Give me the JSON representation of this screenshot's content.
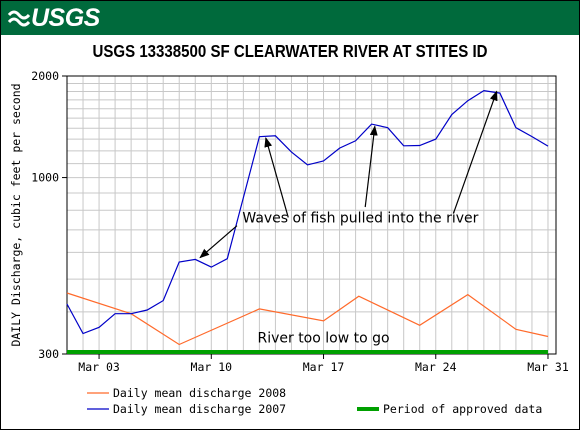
{
  "header": {
    "logo_text": "USGS",
    "title": "USGS 13338500 SF CLEARWATER RIVER AT STITES ID"
  },
  "chart_data": {
    "type": "line",
    "title": "USGS 13338500 SF CLEARWATER RIVER AT STITES ID",
    "ylabel": "DAILY Discharge, cubic feet per second",
    "xlabel": "",
    "y_scale": "log",
    "ylim": [
      300,
      2000
    ],
    "xlim": [
      1,
      31.5
    ],
    "grid": true,
    "x_ticks": [
      {
        "x": 3,
        "label": "Mar 03"
      },
      {
        "x": 10,
        "label": "Mar 10"
      },
      {
        "x": 17,
        "label": "Mar 17"
      },
      {
        "x": 24,
        "label": "Mar 24"
      },
      {
        "x": 31,
        "label": "Mar 31"
      }
    ],
    "y_ticks": [
      {
        "y": 300,
        "label": "300"
      },
      {
        "y": 1000,
        "label": "1000"
      },
      {
        "y": 2000,
        "label": "2000"
      }
    ],
    "series": [
      {
        "name": "Daily mean discharge 2008",
        "color": "#ff6a2b",
        "points": [
          [
            1,
            455
          ],
          [
            5,
            395
          ],
          [
            8,
            320
          ],
          [
            13,
            408
          ],
          [
            17,
            376
          ],
          [
            19.2,
            445
          ],
          [
            23,
            365
          ],
          [
            26,
            450
          ],
          [
            29,
            355
          ],
          [
            31,
            338
          ]
        ]
      },
      {
        "name": "Daily mean discharge 2007",
        "color": "#0000c8",
        "points": [
          [
            1,
            422
          ],
          [
            2,
            345
          ],
          [
            3,
            360
          ],
          [
            4,
            395
          ],
          [
            5,
            395
          ],
          [
            6,
            405
          ],
          [
            7,
            432
          ],
          [
            8,
            562
          ],
          [
            9,
            572
          ],
          [
            10,
            543
          ],
          [
            11,
            575
          ],
          [
            13,
            1322
          ],
          [
            14,
            1330
          ],
          [
            15,
            1190
          ],
          [
            16,
            1090
          ],
          [
            17,
            1120
          ],
          [
            18,
            1223
          ],
          [
            19,
            1285
          ],
          [
            20,
            1440
          ],
          [
            21,
            1405
          ],
          [
            22,
            1242
          ],
          [
            23,
            1245
          ],
          [
            24,
            1300
          ],
          [
            25,
            1538
          ],
          [
            26,
            1690
          ],
          [
            27,
            1810
          ],
          [
            28,
            1780
          ],
          [
            29,
            1405
          ],
          [
            30,
            1323
          ],
          [
            31,
            1240
          ]
        ]
      }
    ],
    "approved_period": {
      "name": "Period of approved data",
      "color": "#00a000",
      "x_range": [
        1,
        31
      ],
      "y": 304
    },
    "annotations": [
      {
        "text": "Waves of fish pulled into the river",
        "x": 19.3,
        "y": 735
      },
      {
        "text": "River too low to go",
        "x": 17,
        "y": 324
      }
    ],
    "arrows": [
      {
        "from": [
          11.6,
          720
        ],
        "to": [
          9.3,
          579
        ]
      },
      {
        "from": [
          14.8,
          762
        ],
        "to": [
          13.4,
          1310
        ]
      },
      {
        "from": [
          19.6,
          818
        ],
        "to": [
          20.2,
          1418
        ]
      },
      {
        "from": [
          25.1,
          782
        ],
        "to": [
          27.8,
          1800
        ]
      }
    ],
    "legend": {
      "placement": "bottom",
      "entries": [
        {
          "label": "Daily mean discharge 2008",
          "color": "#ff6a2b"
        },
        {
          "label": "Daily mean discharge 2007",
          "color": "#0000c8"
        },
        {
          "label": "Period of approved data",
          "color": "#00a000"
        }
      ]
    }
  }
}
